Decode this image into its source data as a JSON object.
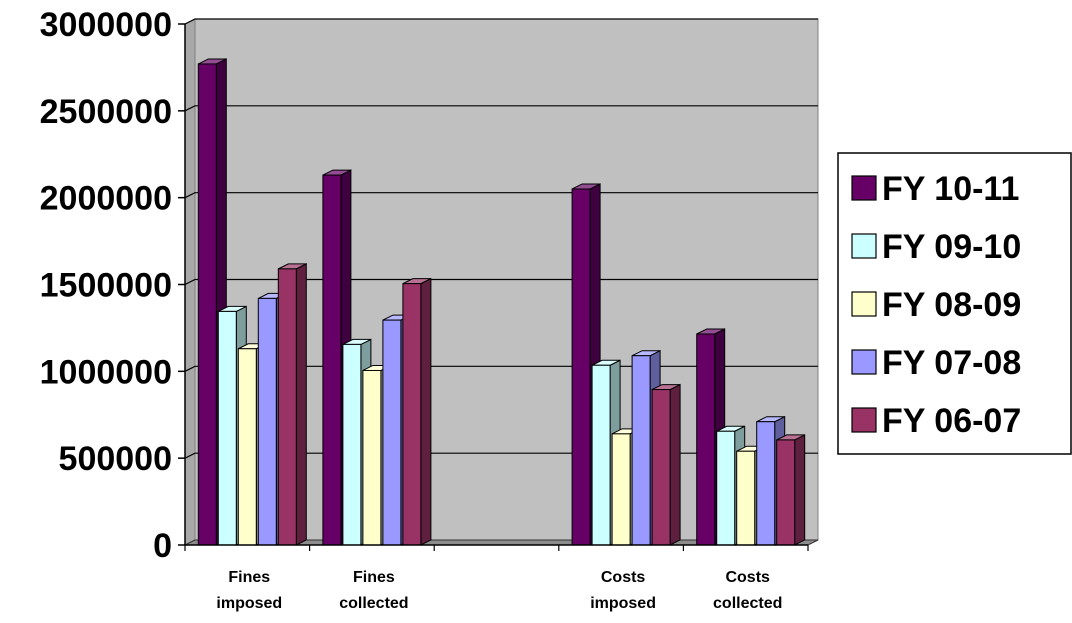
{
  "chart_data": {
    "type": "bar",
    "title": "",
    "xlabel": "",
    "ylabel": "",
    "ylim": [
      0,
      3000000
    ],
    "yticks": [
      0,
      500000,
      1000000,
      1500000,
      2000000,
      2500000,
      3000000
    ],
    "ytick_labels": [
      "0",
      "500000",
      "1000000",
      "1500000",
      "2000000",
      "2500000",
      "3000000"
    ],
    "grid": true,
    "three_d": true,
    "plot_background": "#c0c0c0",
    "legend_position": "right",
    "categories": [
      {
        "lines": [
          "Fines",
          "imposed"
        ],
        "label": "Fines imposed"
      },
      {
        "lines": [
          "Fines",
          "collected"
        ],
        "label": "Fines collected"
      },
      {
        "lines": [
          "",
          ""
        ],
        "label": ""
      },
      {
        "lines": [
          "Costs",
          "imposed"
        ],
        "label": "Costs imposed"
      },
      {
        "lines": [
          "Costs",
          "collected"
        ],
        "label": "Costs collected"
      }
    ],
    "series": [
      {
        "name": "FY 10-11",
        "color": "#660066",
        "values": [
          2770000,
          2130000,
          null,
          2050000,
          1215000
        ]
      },
      {
        "name": "FY 09-10",
        "color": "#ccffff",
        "values": [
          1345000,
          1155000,
          null,
          1035000,
          655000
        ]
      },
      {
        "name": "FY 08-09",
        "color": "#ffffcc",
        "values": [
          1130000,
          1005000,
          null,
          640000,
          540000
        ]
      },
      {
        "name": "FY 07-08",
        "color": "#9999ff",
        "values": [
          1420000,
          1295000,
          null,
          1090000,
          710000
        ]
      },
      {
        "name": "FY 06-07",
        "color": "#993366",
        "values": [
          1590000,
          1505000,
          null,
          895000,
          605000
        ]
      }
    ]
  }
}
